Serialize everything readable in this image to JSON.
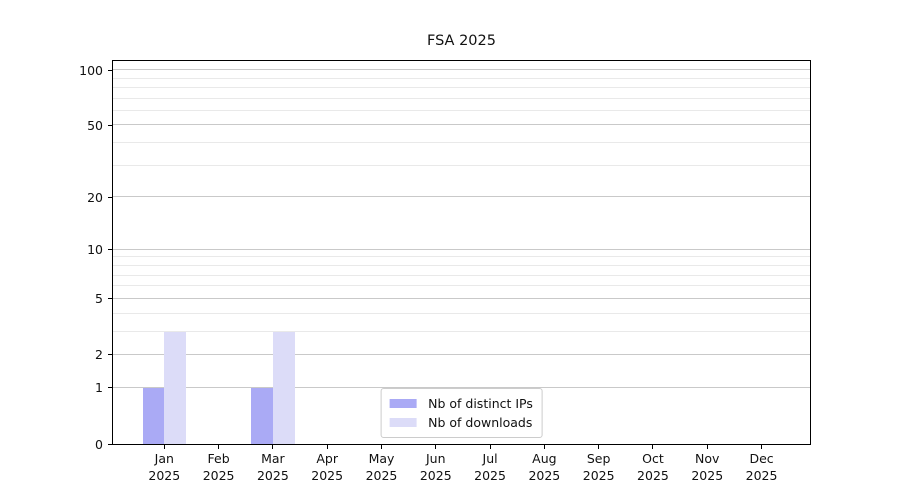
{
  "chart_data": {
    "type": "bar",
    "title": "FSA 2025",
    "year": "2025",
    "categories": [
      "Jan",
      "Feb",
      "Mar",
      "Apr",
      "May",
      "Jun",
      "Jul",
      "Aug",
      "Sep",
      "Oct",
      "Nov",
      "Dec"
    ],
    "series": [
      {
        "name": "Nb of distinct IPs",
        "color": "#aaaaf5",
        "values": [
          1,
          0,
          1,
          0,
          0,
          0,
          0,
          0,
          0,
          0,
          0,
          0
        ]
      },
      {
        "name": "Nb of downloads",
        "color": "#dcdcf8",
        "values": [
          3,
          0,
          3,
          0,
          0,
          0,
          0,
          0,
          0,
          0,
          0,
          0
        ]
      }
    ],
    "y_axis": {
      "scale": "log10(1+x)",
      "ticks": [
        0,
        1,
        2,
        5,
        10,
        20,
        50,
        100
      ],
      "minor_ticks": [
        3,
        4,
        6,
        7,
        8,
        9,
        30,
        40,
        60,
        70,
        80,
        90
      ],
      "max": 112
    },
    "x_axis": {
      "tick_count": 12
    },
    "grid": true,
    "legend_position": "lower center",
    "colors": {
      "major_grid": "#c9c9c9",
      "minor_grid": "#e9e9e9",
      "spine": "#000000",
      "text": "#111111"
    }
  }
}
